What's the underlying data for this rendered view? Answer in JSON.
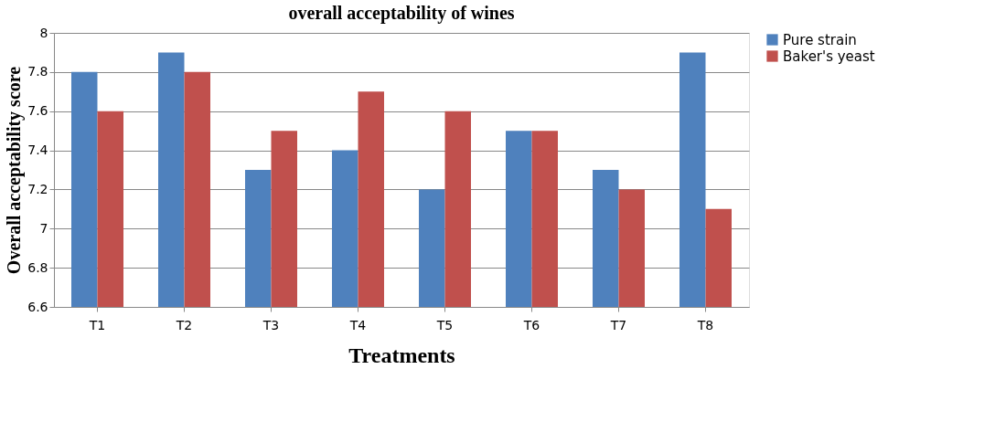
{
  "chart_data": {
    "type": "bar",
    "title": "overall acceptability of wines",
    "xlabel": "Treatments",
    "ylabel": "Overall acceptability score",
    "categories": [
      "T1",
      "T2",
      "T3",
      "T4",
      "T5",
      "T6",
      "T7",
      "T8"
    ],
    "series": [
      {
        "name": "Pure strain",
        "color": "#4f81bd",
        "values": [
          7.8,
          7.9,
          7.3,
          7.4,
          7.2,
          7.5,
          7.3,
          7.9
        ]
      },
      {
        "name": "Baker's yeast",
        "color": "#c0504d",
        "values": [
          7.6,
          7.8,
          7.5,
          7.7,
          7.6,
          7.5,
          7.2,
          7.1
        ]
      }
    ],
    "ylim": [
      6.6,
      8
    ],
    "yticks": [
      6.6,
      6.8,
      7,
      7.2,
      7.4,
      7.6,
      7.8,
      8
    ],
    "grid": "y",
    "legend": "right"
  }
}
